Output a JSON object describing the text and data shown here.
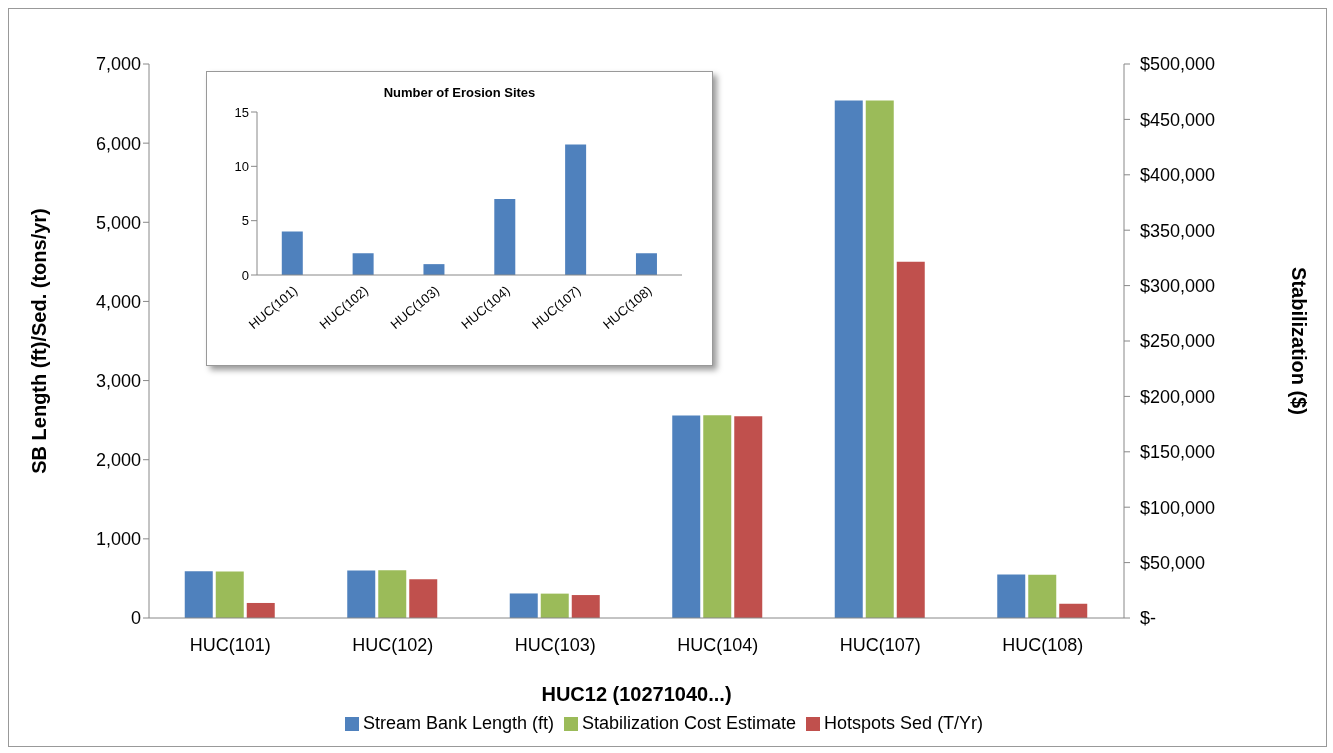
{
  "chart_data": [
    {
      "type": "bar",
      "xlabel": "HUC12 (10271040...)",
      "ylabel": "SB Length (ft)/Sed. (tons/yr)",
      "y2label": "Stabilization ($)",
      "categories": [
        "HUC(101)",
        "HUC(102)",
        "HUC(103)",
        "HUC(104)",
        "HUC(107)",
        "HUC(108)"
      ],
      "series": [
        {
          "name": "Stream Bank Length (ft)",
          "color": "#4f81bd",
          "values": [
            590,
            600,
            310,
            2560,
            6540,
            550
          ]
        },
        {
          "name": "Stabilization Cost Estimate",
          "color": "#9bbb59",
          "axis": "y2",
          "values": [
            42000,
            43000,
            22000,
            183000,
            467000,
            39000
          ]
        },
        {
          "name": "Hotspots Sed (T/Yr)",
          "color": "#c0504d",
          "values": [
            190,
            490,
            290,
            2550,
            4500,
            180
          ]
        }
      ],
      "ylim": [
        0,
        7000
      ],
      "yticks": [
        0,
        {
          "value": 1000,
          "label": "1,000"
        },
        {
          "value": 2000,
          "label": "2,000"
        },
        {
          "value": 3000,
          "label": "3,000"
        },
        {
          "value": 4000,
          "label": "4,000"
        },
        {
          "value": 5000,
          "label": "5,000"
        },
        {
          "value": 6000,
          "label": "6,000"
        },
        {
          "value": 7000,
          "label": "7,000"
        }
      ],
      "y2lim": [
        0,
        500000
      ],
      "y2ticks": [
        {
          "value": 0,
          "label": "$-"
        },
        {
          "value": 50000,
          "label": "$50,000"
        },
        {
          "value": 100000,
          "label": "$100,000"
        },
        {
          "value": 150000,
          "label": "$150,000"
        },
        {
          "value": 200000,
          "label": "$200,000"
        },
        {
          "value": 250000,
          "label": "$250,000"
        },
        {
          "value": 300000,
          "label": "$300,000"
        },
        {
          "value": 350000,
          "label": "$350,000"
        },
        {
          "value": 400000,
          "label": "$400,000"
        },
        {
          "value": 450000,
          "label": "$450,000"
        },
        {
          "value": 500000,
          "label": "$500,000"
        }
      ],
      "legend": "bottom"
    },
    {
      "type": "bar",
      "title": "Number of Erosion Sites",
      "categories": [
        "HUC(101)",
        "HUC(102)",
        "HUC(103)",
        "HUC(104)",
        "HUC(107)",
        "HUC(108)"
      ],
      "color": "#4f81bd",
      "values": [
        4,
        2,
        1,
        7,
        12,
        2
      ],
      "ylim": [
        0,
        15
      ],
      "yticks": [
        0,
        5,
        10,
        15
      ]
    }
  ]
}
